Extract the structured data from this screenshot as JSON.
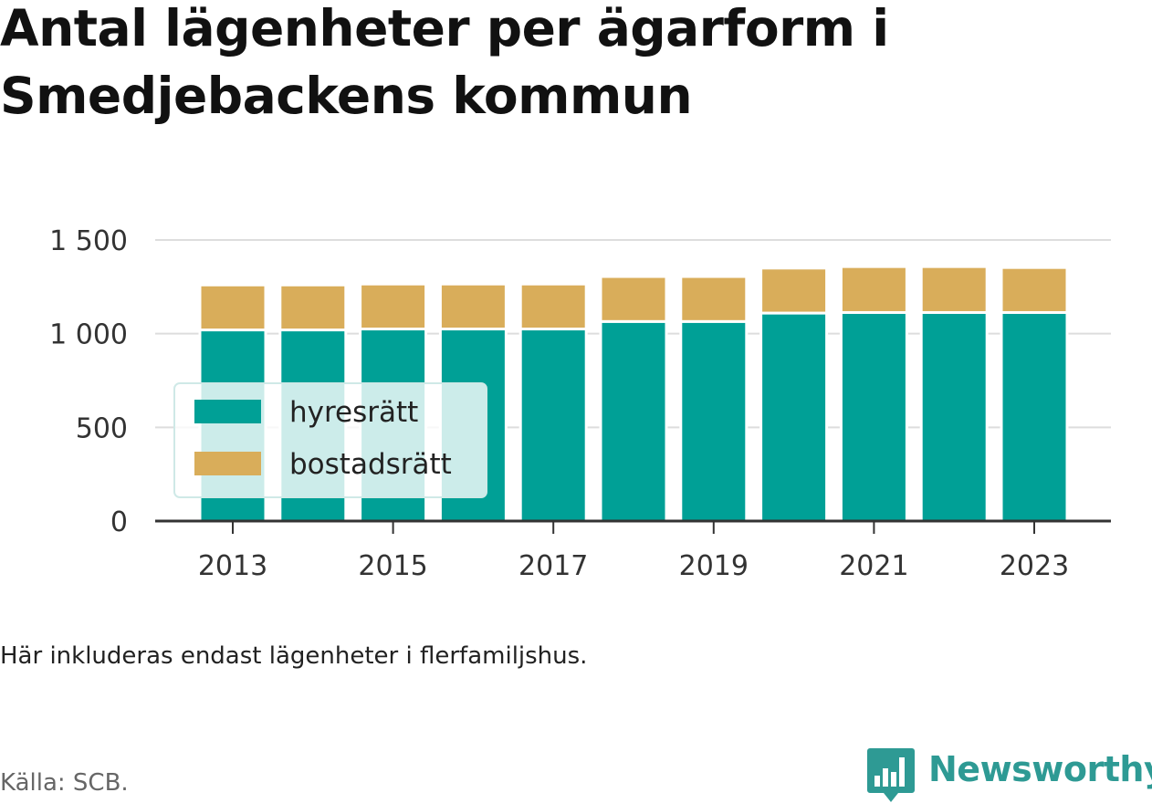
{
  "title": "Antal lägenheter per ägarform i Smedjebackens kommun",
  "note": "Här inkluderas endast lägenheter i flerfamiljshus.",
  "source": "Källa: SCB.",
  "brand": {
    "name": "Newsworthy",
    "icon": "newsworthy-logo-icon",
    "color": "#2e9a94"
  },
  "chart_data": {
    "type": "bar",
    "stacked": true,
    "categories": [
      "2013",
      "2014",
      "2015",
      "2016",
      "2017",
      "2018",
      "2019",
      "2020",
      "2021",
      "2022",
      "2023"
    ],
    "series": [
      {
        "name": "hyresrätt",
        "color": "#00a096",
        "values": [
          1020,
          1020,
          1025,
          1025,
          1025,
          1065,
          1065,
          1110,
          1113,
          1113,
          1113
        ]
      },
      {
        "name": "bostadsrätt",
        "color": "#d9ad5a",
        "values": [
          240,
          240,
          240,
          240,
          240,
          240,
          240,
          240,
          245,
          245,
          240
        ]
      }
    ],
    "ylim": [
      0,
      1500
    ],
    "yticks": [
      0,
      500,
      1000,
      1500
    ],
    "ytick_labels": [
      "0",
      "500",
      "1 000",
      "1 500"
    ],
    "xtick_labels": [
      "2013",
      "2015",
      "2017",
      "2019",
      "2021",
      "2023"
    ],
    "grid": true,
    "legend_position": "lower-left"
  }
}
